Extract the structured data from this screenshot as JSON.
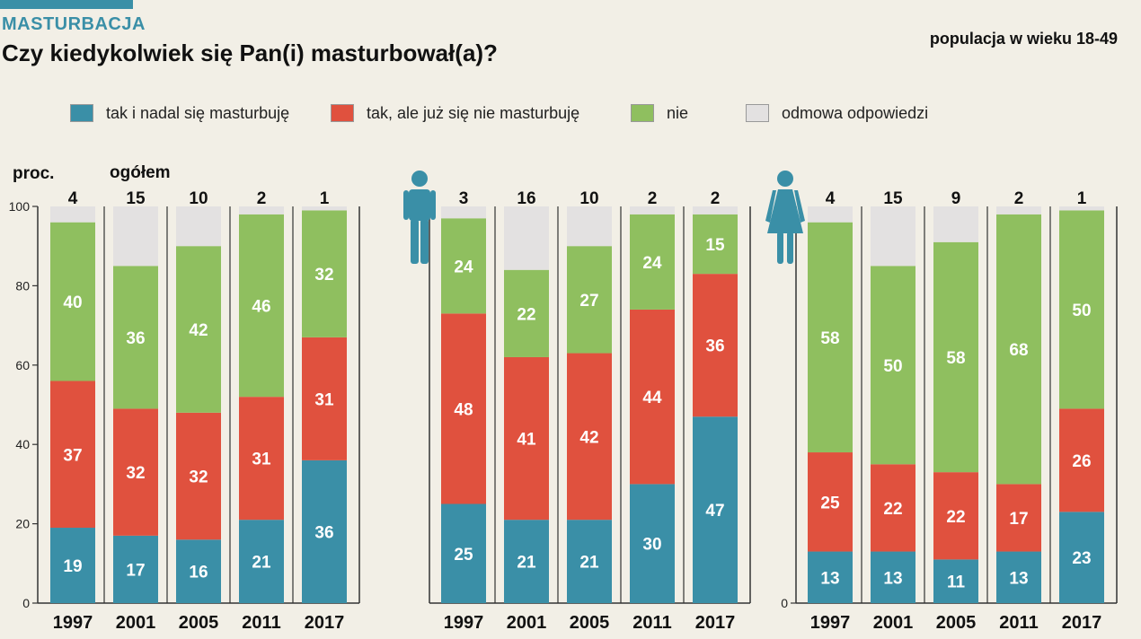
{
  "header": {
    "kicker": "MASTURBACJA",
    "title": "Czy kiedykolwiek się Pan(i) masturbował(a)?",
    "subtitle": "populacja w wieku 18-49"
  },
  "legend": [
    {
      "label": "tak i nadal się masturbuję",
      "color": "#3a8fa7"
    },
    {
      "label": "tak, ale już się nie masturbuję",
      "color": "#e0513e"
    },
    {
      "label": "nie",
      "color": "#8fbf5f"
    },
    {
      "label": "odmowa odpowiedzi",
      "color": "#e3e1e1"
    }
  ],
  "chart_labels": {
    "ylabel": "proc.",
    "total_label": "ogółem"
  },
  "icons": {
    "men": "male-person-icon",
    "women": "female-person-icon"
  },
  "colors": {
    "teal": "#3a8fa7",
    "red": "#e0513e",
    "green": "#8fbf5f",
    "gray": "#e3e1e1",
    "icon": "#3a8fa7"
  },
  "chart_data": [
    {
      "type": "bar",
      "stacked": true,
      "group": "ogółem",
      "categories": [
        "1997",
        "2001",
        "2005",
        "2011",
        "2017"
      ],
      "ylim": [
        0,
        100
      ],
      "yticks": [
        0,
        20,
        40,
        60,
        80,
        100
      ],
      "series": [
        {
          "name": "tak i nadal się masturbuję",
          "values": [
            19,
            17,
            16,
            21,
            36
          ]
        },
        {
          "name": "tak, ale już się nie masturbuję",
          "values": [
            37,
            32,
            32,
            31,
            31
          ]
        },
        {
          "name": "nie",
          "values": [
            40,
            36,
            42,
            46,
            32
          ]
        },
        {
          "name": "odmowa odpowiedzi",
          "values": [
            4,
            15,
            10,
            2,
            1
          ]
        }
      ]
    },
    {
      "type": "bar",
      "stacked": true,
      "group": "mężczyźni",
      "categories": [
        "1997",
        "2001",
        "2005",
        "2011",
        "2017"
      ],
      "ylim": [
        0,
        100
      ],
      "series": [
        {
          "name": "tak i nadal się masturbuję",
          "values": [
            25,
            21,
            21,
            30,
            47
          ]
        },
        {
          "name": "tak, ale już się nie masturbuję",
          "values": [
            48,
            41,
            42,
            44,
            36
          ]
        },
        {
          "name": "nie",
          "values": [
            24,
            22,
            27,
            24,
            15
          ]
        },
        {
          "name": "odmowa odpowiedzi",
          "values": [
            3,
            16,
            10,
            2,
            2
          ]
        }
      ]
    },
    {
      "type": "bar",
      "stacked": true,
      "group": "kobiety",
      "categories": [
        "1997",
        "2001",
        "2005",
        "2011",
        "2017"
      ],
      "ylim": [
        0,
        100
      ],
      "yticks": [
        0
      ],
      "series": [
        {
          "name": "tak i nadal się masturbuję",
          "values": [
            13,
            13,
            11,
            13,
            23
          ]
        },
        {
          "name": "tak, ale już się nie masturbuję",
          "values": [
            25,
            22,
            22,
            17,
            26
          ]
        },
        {
          "name": "nie",
          "values": [
            58,
            50,
            58,
            68,
            50
          ]
        },
        {
          "name": "odmowa odpowiedzi",
          "values": [
            4,
            15,
            9,
            2,
            1
          ]
        }
      ]
    }
  ]
}
